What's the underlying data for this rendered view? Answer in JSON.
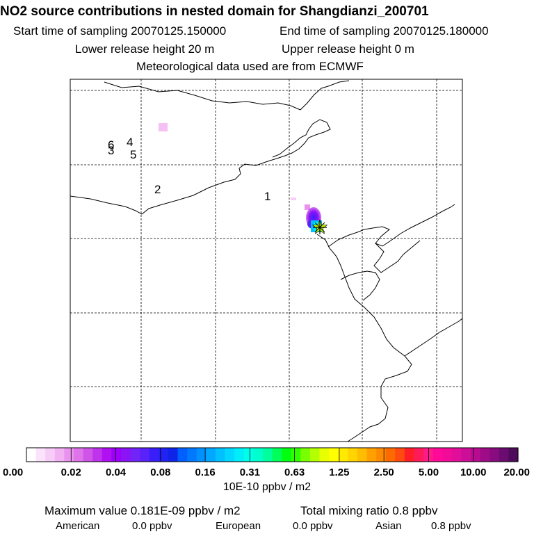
{
  "header": {
    "title": "NO2 source contributions in nested domain for Shangdianzi_200701",
    "start_time": "Start time of sampling 20070125.150000",
    "end_time": "End time of sampling 20070125.180000",
    "lower_release": "Lower release height   20 m",
    "upper_release": "Upper release height    0 m",
    "met_data": "Meteorological data used are from ECMWF"
  },
  "map": {
    "site_labels": [
      {
        "label": "1",
        "name": "site-label-1"
      },
      {
        "label": "2",
        "name": "site-label-2"
      },
      {
        "label": "3",
        "name": "site-label-3"
      },
      {
        "label": "4",
        "name": "site-label-4"
      },
      {
        "label": "5",
        "name": "site-label-5"
      },
      {
        "label": "6",
        "name": "site-label-6"
      }
    ],
    "receptor_marker": "star-marker-icon"
  },
  "colorbar": {
    "tick_labels": [
      "0.00",
      "0.02",
      "0.04",
      "0.08",
      "0.16",
      "0.31",
      "0.63",
      "1.25",
      "2.50",
      "5.00",
      "10.00",
      "20.00"
    ],
    "colors": [
      "#ffffff",
      "#fbe3fb",
      "#f7ccf7",
      "#f2b1f3",
      "#e992ee",
      "#de73ea",
      "#cf55e8",
      "#c033ec",
      "#b010f2",
      "#9c00f8",
      "#8a14f5",
      "#7224f7",
      "#5a22f8",
      "#3a1ef8",
      "#2222f5",
      "#0e24e6",
      "#0060ff",
      "#0078ff",
      "#0090ff",
      "#00a8ff",
      "#00c0ff",
      "#00d8ff",
      "#00eef8",
      "#00ffe8",
      "#00ffcc",
      "#00ff9c",
      "#00ff5a",
      "#00ff10",
      "#30ff00",
      "#7aff00",
      "#b4ff00",
      "#e8ff00",
      "#ffff00",
      "#ffea00",
      "#ffd400",
      "#ffbd00",
      "#ffa000",
      "#ff8a00",
      "#ff6a00",
      "#ff4a10",
      "#ff1e28",
      "#ff1a58",
      "#ff1a88",
      "#ff0a98",
      "#f20a98",
      "#e00e98",
      "#cc0e98",
      "#b80c90",
      "#a00c88",
      "#880c80",
      "#6c0c70",
      "#4e0c5a"
    ],
    "units_label": "10E-10 ppbv / m2"
  },
  "footer": {
    "max_value": "Maximum value  0.181E-09 ppbv / m2",
    "total_mixing": "Total mixing ratio      0.8 ppbv",
    "american_label": "American",
    "american_value": "0.0 ppbv",
    "european_label": "European",
    "european_value": "0.0 ppbv",
    "asian_label": "Asian",
    "asian_value": "0.8 ppbv"
  }
}
